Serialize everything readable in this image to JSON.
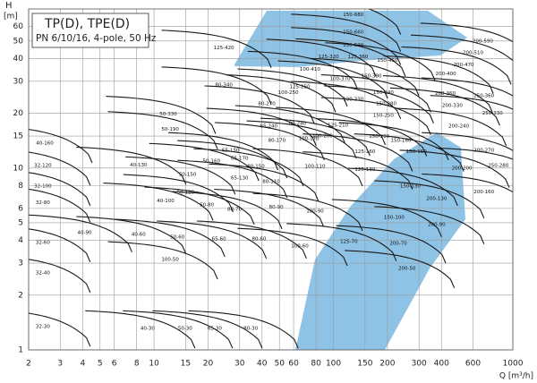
{
  "chart_data": {
    "type": "annotated-region-map",
    "title": "TP(D), TPE(D)",
    "subtitle": "PN 6/10/16, 4-pole, 50 Hz",
    "y_label": "H",
    "y_unit": "[m]",
    "x_label": "Q [m³/h]",
    "x_scale": "log",
    "y_scale": "log",
    "grid": true,
    "xlim": [
      2,
      1000
    ],
    "ylim": [
      1,
      75
    ],
    "xticks": [
      2,
      3,
      4,
      5,
      6,
      8,
      10,
      15,
      20,
      30,
      40,
      50,
      60,
      80,
      100,
      150,
      200,
      300,
      400,
      600,
      1000
    ],
    "yticks": [
      1,
      2,
      3,
      4,
      5,
      6,
      8,
      10,
      15,
      20,
      30,
      40,
      50,
      60
    ],
    "annotations": [
      {
        "text": "150-680",
        "x": 129,
        "y": 69.5
      },
      {
        "text": "150-660",
        "x": 129,
        "y": 56
      },
      {
        "text": "150-520",
        "x": 129,
        "y": 47.3
      },
      {
        "text": "125-420",
        "x": 24.5,
        "y": 45.7
      },
      {
        "text": "125-320",
        "x": 94,
        "y": 40.8
      },
      {
        "text": "125-360",
        "x": 137,
        "y": 41
      },
      {
        "text": "150-450",
        "x": 200,
        "y": 39
      },
      {
        "text": "100-410",
        "x": 74,
        "y": 35
      },
      {
        "text": "100-370",
        "x": 109,
        "y": 31
      },
      {
        "text": "150-390",
        "x": 163,
        "y": 32
      },
      {
        "text": "200-400",
        "x": 423,
        "y": 33
      },
      {
        "text": "200-470",
        "x": 532,
        "y": 37
      },
      {
        "text": "200-510",
        "x": 600,
        "y": 43
      },
      {
        "text": "200-590",
        "x": 680,
        "y": 50
      },
      {
        "text": "80-340",
        "x": 24.5,
        "y": 28.7
      },
      {
        "text": "125-250",
        "x": 65,
        "y": 28
      },
      {
        "text": "100-250",
        "x": 56,
        "y": 26
      },
      {
        "text": "150-340",
        "x": 190,
        "y": 26
      },
      {
        "text": "200-360",
        "x": 420,
        "y": 25.7
      },
      {
        "text": "150-280",
        "x": 197,
        "y": 22.6
      },
      {
        "text": "200-330",
        "x": 460,
        "y": 22
      },
      {
        "text": "250-360",
        "x": 690,
        "y": 25
      },
      {
        "text": "250-330",
        "x": 770,
        "y": 20
      },
      {
        "text": "80-270",
        "x": 42.5,
        "y": 22.6
      },
      {
        "text": "100-330",
        "x": 129,
        "y": 23.9
      },
      {
        "text": "150-250",
        "x": 190,
        "y": 19.5
      },
      {
        "text": "50-330",
        "x": 12,
        "y": 19.8
      },
      {
        "text": "65-240",
        "x": 43.6,
        "y": 17
      },
      {
        "text": "80-240",
        "x": 63,
        "y": 17.6
      },
      {
        "text": "80-170",
        "x": 48.4,
        "y": 14.2
      },
      {
        "text": "100-170",
        "x": 73,
        "y": 14.5
      },
      {
        "text": "100-200",
        "x": 87,
        "y": 15
      },
      {
        "text": "125-210",
        "x": 106,
        "y": 17.2
      },
      {
        "text": "50-190",
        "x": 12.3,
        "y": 16.3
      },
      {
        "text": "150-200",
        "x": 180,
        "y": 14.9
      },
      {
        "text": "125-160",
        "x": 150,
        "y": 12.3
      },
      {
        "text": "150-160",
        "x": 238,
        "y": 14.2
      },
      {
        "text": "200-240",
        "x": 500,
        "y": 17
      },
      {
        "text": "40-160",
        "x": 2.46,
        "y": 13.7
      },
      {
        "text": "65-150",
        "x": 26.7,
        "y": 12.5
      },
      {
        "text": "50-160",
        "x": 20.9,
        "y": 10.9
      },
      {
        "text": "65-170",
        "x": 30,
        "y": 11.3
      },
      {
        "text": "80-150",
        "x": 37,
        "y": 10.2
      },
      {
        "text": "100-110",
        "x": 79,
        "y": 10.2
      },
      {
        "text": "32-120",
        "x": 2.4,
        "y": 10.3
      },
      {
        "text": "40-130",
        "x": 8.2,
        "y": 10.4
      },
      {
        "text": "50-150",
        "x": 15.4,
        "y": 9.2
      },
      {
        "text": "65-130",
        "x": 30,
        "y": 8.8
      },
      {
        "text": "80-110",
        "x": 45,
        "y": 8.4
      },
      {
        "text": "125-130",
        "x": 150,
        "y": 9.8
      },
      {
        "text": "200-200",
        "x": 520,
        "y": 10
      },
      {
        "text": "200-270",
        "x": 690,
        "y": 12.5
      },
      {
        "text": "250-280",
        "x": 830,
        "y": 10.3
      },
      {
        "text": "150-130",
        "x": 268,
        "y": 7.96
      },
      {
        "text": "150-150",
        "x": 290,
        "y": 12.3
      },
      {
        "text": "32-100",
        "x": 2.4,
        "y": 7.96
      },
      {
        "text": "40-100",
        "x": 11.6,
        "y": 6.6
      },
      {
        "text": "50-120",
        "x": 15,
        "y": 7.35
      },
      {
        "text": "80-70",
        "x": 28.1,
        "y": 5.93
      },
      {
        "text": "50-80",
        "x": 19.7,
        "y": 6.27
      },
      {
        "text": "32-80",
        "x": 2.4,
        "y": 6.45
      },
      {
        "text": "100-90",
        "x": 79,
        "y": 5.79
      },
      {
        "text": "80-90",
        "x": 48,
        "y": 6.1
      },
      {
        "text": "150-100",
        "x": 218,
        "y": 5.36
      },
      {
        "text": "200-130",
        "x": 376,
        "y": 6.8
      },
      {
        "text": "200-160",
        "x": 690,
        "y": 7.4
      },
      {
        "text": "200-90",
        "x": 376,
        "y": 4.9
      },
      {
        "text": "40-90",
        "x": 4.1,
        "y": 4.42
      },
      {
        "text": "40-60",
        "x": 8.2,
        "y": 4.32
      },
      {
        "text": "50-60",
        "x": 13.5,
        "y": 4.17
      },
      {
        "text": "65-60",
        "x": 23,
        "y": 4.08
      },
      {
        "text": "80-60",
        "x": 38.5,
        "y": 4.08
      },
      {
        "text": "125-70",
        "x": 122,
        "y": 3.95
      },
      {
        "text": "200-70",
        "x": 230,
        "y": 3.85
      },
      {
        "text": "32-60",
        "x": 2.4,
        "y": 3.9
      },
      {
        "text": "100-60",
        "x": 65,
        "y": 3.72
      },
      {
        "text": "100-50",
        "x": 12.3,
        "y": 3.14
      },
      {
        "text": "200-50",
        "x": 257,
        "y": 2.81
      },
      {
        "text": "32-40",
        "x": 2.4,
        "y": 2.65
      },
      {
        "text": "32-30",
        "x": 2.4,
        "y": 1.34
      },
      {
        "text": "40-30",
        "x": 9.2,
        "y": 1.31
      },
      {
        "text": "50-30",
        "x": 14.9,
        "y": 1.31
      },
      {
        "text": "65-30",
        "x": 21.8,
        "y": 1.31
      },
      {
        "text": "80-30",
        "x": 34.6,
        "y": 1.31
      }
    ]
  }
}
